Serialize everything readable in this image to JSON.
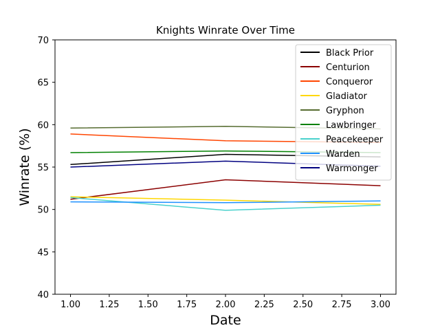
{
  "chart_data": {
    "type": "line",
    "title": "Knights Winrate Over Time",
    "xlabel": "Date",
    "ylabel": "Winrate (%)",
    "xlim": [
      0.9,
      3.1
    ],
    "ylim": [
      40,
      70
    ],
    "xticks": [
      1.0,
      1.25,
      1.5,
      1.75,
      2.0,
      2.25,
      2.5,
      2.75,
      3.0
    ],
    "xtick_labels": [
      "1.00",
      "1.25",
      "1.50",
      "1.75",
      "2.00",
      "2.25",
      "2.50",
      "2.75",
      "3.00"
    ],
    "yticks": [
      40,
      45,
      50,
      55,
      60,
      65,
      70
    ],
    "ytick_labels": [
      "40",
      "45",
      "50",
      "55",
      "60",
      "65",
      "70"
    ],
    "grid": false,
    "legend_position": "top-right",
    "x": [
      1,
      2,
      3
    ],
    "series": [
      {
        "name": "Black Prior",
        "color": "#000000",
        "values": [
          55.3,
          56.5,
          56.2
        ]
      },
      {
        "name": "Centurion",
        "color": "#8b0000",
        "values": [
          51.2,
          53.5,
          52.8
        ]
      },
      {
        "name": "Conqueror",
        "color": "#ff4500",
        "values": [
          58.9,
          58.1,
          57.9
        ]
      },
      {
        "name": "Gladiator",
        "color": "#ffd700",
        "values": [
          51.5,
          51.1,
          50.6
        ]
      },
      {
        "name": "Gryphon",
        "color": "#556b2f",
        "values": [
          59.6,
          59.8,
          59.5
        ]
      },
      {
        "name": "Lawbringer",
        "color": "#008000",
        "values": [
          56.7,
          56.9,
          56.7
        ]
      },
      {
        "name": "Peacekeeper",
        "color": "#48d1cc",
        "values": [
          51.4,
          49.9,
          50.5
        ]
      },
      {
        "name": "Warden",
        "color": "#1e90ff",
        "values": [
          50.9,
          50.8,
          51.0
        ]
      },
      {
        "name": "Warmonger",
        "color": "#000080",
        "values": [
          55.0,
          55.7,
          55.1
        ]
      }
    ]
  }
}
